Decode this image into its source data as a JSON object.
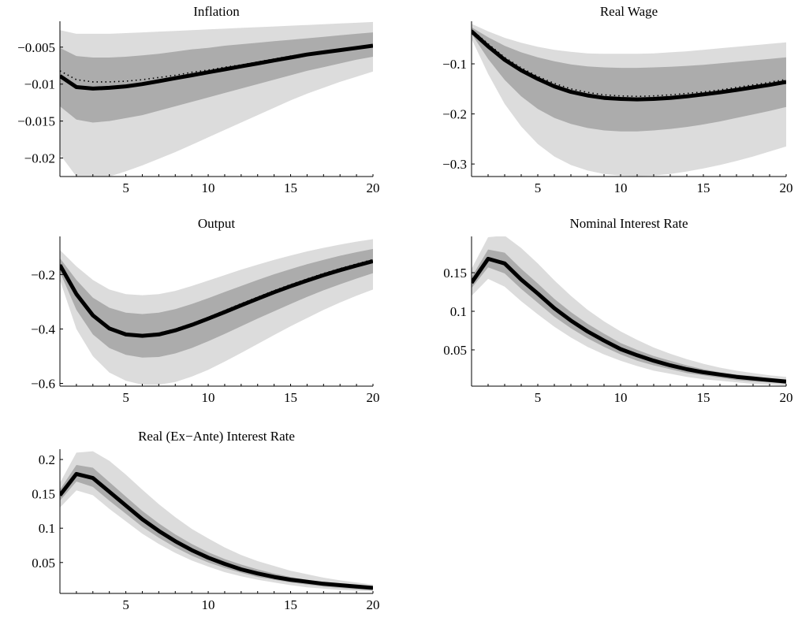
{
  "chart_data": [
    {
      "type": "line",
      "title": "Inflation",
      "xlabel": "",
      "ylabel": "",
      "xlim": [
        1,
        20
      ],
      "ylim": [
        -0.0225,
        -0.0015
      ],
      "xticks": [
        5,
        10,
        15,
        20
      ],
      "yticks": [
        -0.02,
        -0.015,
        -0.01,
        -0.005
      ],
      "ytick_labels": [
        "−0.02",
        "−0.015",
        "−0.01",
        "−0.005"
      ],
      "grid": false,
      "x": [
        1,
        2,
        3,
        4,
        5,
        6,
        7,
        8,
        9,
        10,
        11,
        12,
        13,
        14,
        15,
        16,
        17,
        18,
        19,
        20
      ],
      "series": [
        {
          "values": [
            -0.0089,
            -0.0104,
            -0.0106,
            -0.0105,
            -0.0103,
            -0.01,
            -0.0096,
            -0.0092,
            -0.0088,
            -0.0084,
            -0.008,
            -0.0076,
            -0.0072,
            -0.0068,
            -0.0064,
            -0.006,
            -0.0057,
            -0.0054,
            -0.0051,
            -0.0048
          ]
        },
        {
          "style": "dotted",
          "values": [
            -0.0082,
            -0.0094,
            -0.0097,
            -0.0097,
            -0.0096,
            -0.0094,
            -0.0091,
            -0.0088,
            -0.0084,
            -0.0081,
            -0.0077,
            -0.0074,
            -0.007,
            -0.0066,
            -0.0062,
            -0.0059,
            -0.0056,
            -0.0053,
            -0.005,
            -0.0047
          ]
        }
      ],
      "bands": [
        {
          "shade": "light",
          "lower": [
            -0.0195,
            -0.0225,
            -0.0228,
            -0.0225,
            -0.0218,
            -0.021,
            -0.0201,
            -0.0192,
            -0.0182,
            -0.0172,
            -0.0162,
            -0.0152,
            -0.0142,
            -0.0132,
            -0.0122,
            -0.0113,
            -0.0105,
            -0.0097,
            -0.009,
            -0.0083
          ],
          "upper": [
            -0.0027,
            -0.0032,
            -0.0032,
            -0.0032,
            -0.0031,
            -0.003,
            -0.0029,
            -0.0028,
            -0.0027,
            -0.0026,
            -0.0025,
            -0.0024,
            -0.0023,
            -0.0022,
            -0.0021,
            -0.002,
            -0.0019,
            -0.0018,
            -0.0017,
            -0.0016
          ]
        },
        {
          "shade": "dark",
          "lower": [
            -0.013,
            -0.0148,
            -0.0152,
            -0.015,
            -0.0146,
            -0.0142,
            -0.0136,
            -0.013,
            -0.0124,
            -0.0118,
            -0.0112,
            -0.0106,
            -0.01,
            -0.0094,
            -0.0088,
            -0.0082,
            -0.0077,
            -0.0072,
            -0.0067,
            -0.0063
          ],
          "upper": [
            -0.0051,
            -0.0062,
            -0.0064,
            -0.0064,
            -0.0063,
            -0.0061,
            -0.0059,
            -0.0056,
            -0.0053,
            -0.0051,
            -0.0048,
            -0.0046,
            -0.0044,
            -0.0042,
            -0.004,
            -0.0038,
            -0.0036,
            -0.0034,
            -0.0032,
            -0.003
          ]
        }
      ]
    },
    {
      "type": "line",
      "title": "Real Wage",
      "xlabel": "",
      "ylabel": "",
      "xlim": [
        1,
        20
      ],
      "ylim": [
        -0.325,
        -0.015
      ],
      "xticks": [
        5,
        10,
        15,
        20
      ],
      "yticks": [
        -0.3,
        -0.2,
        -0.1
      ],
      "ytick_labels": [
        "−0.3",
        "−0.2",
        "−0.1"
      ],
      "grid": false,
      "x": [
        1,
        2,
        3,
        4,
        5,
        6,
        7,
        8,
        9,
        10,
        11,
        12,
        13,
        14,
        15,
        16,
        17,
        18,
        19,
        20
      ],
      "series": [
        {
          "values": [
            -0.035,
            -0.065,
            -0.092,
            -0.113,
            -0.13,
            -0.145,
            -0.156,
            -0.163,
            -0.168,
            -0.17,
            -0.171,
            -0.17,
            -0.168,
            -0.165,
            -0.161,
            -0.157,
            -0.152,
            -0.147,
            -0.142,
            -0.136
          ]
        },
        {
          "style": "dotted",
          "values": [
            -0.032,
            -0.06,
            -0.087,
            -0.108,
            -0.125,
            -0.139,
            -0.15,
            -0.157,
            -0.162,
            -0.164,
            -0.165,
            -0.164,
            -0.162,
            -0.159,
            -0.156,
            -0.152,
            -0.147,
            -0.142,
            -0.137,
            -0.131
          ]
        }
      ],
      "bands": [
        {
          "shade": "light",
          "lower": [
            -0.05,
            -0.12,
            -0.18,
            -0.225,
            -0.26,
            -0.285,
            -0.302,
            -0.313,
            -0.32,
            -0.323,
            -0.324,
            -0.323,
            -0.32,
            -0.315,
            -0.309,
            -0.302,
            -0.294,
            -0.285,
            -0.275,
            -0.265
          ],
          "upper": [
            -0.02,
            -0.035,
            -0.048,
            -0.058,
            -0.066,
            -0.072,
            -0.076,
            -0.079,
            -0.08,
            -0.08,
            -0.08,
            -0.079,
            -0.077,
            -0.075,
            -0.072,
            -0.069,
            -0.066,
            -0.063,
            -0.06,
            -0.057
          ]
        },
        {
          "shade": "dark",
          "lower": [
            -0.04,
            -0.09,
            -0.132,
            -0.165,
            -0.19,
            -0.208,
            -0.22,
            -0.228,
            -0.233,
            -0.235,
            -0.235,
            -0.233,
            -0.23,
            -0.226,
            -0.221,
            -0.215,
            -0.208,
            -0.201,
            -0.194,
            -0.186
          ],
          "upper": [
            -0.027,
            -0.047,
            -0.064,
            -0.077,
            -0.087,
            -0.095,
            -0.101,
            -0.105,
            -0.107,
            -0.108,
            -0.108,
            -0.107,
            -0.106,
            -0.104,
            -0.102,
            -0.099,
            -0.096,
            -0.093,
            -0.09,
            -0.087
          ]
        }
      ]
    },
    {
      "type": "line",
      "title": "Output",
      "xlabel": "",
      "ylabel": "",
      "xlim": [
        1,
        20
      ],
      "ylim": [
        -0.61,
        -0.06
      ],
      "xticks": [
        5,
        10,
        15,
        20
      ],
      "yticks": [
        -0.6,
        -0.4,
        -0.2
      ],
      "ytick_labels": [
        "−0.6",
        "−0.4",
        "−0.2"
      ],
      "grid": false,
      "x": [
        1,
        2,
        3,
        4,
        5,
        6,
        7,
        8,
        9,
        10,
        11,
        12,
        13,
        14,
        15,
        16,
        17,
        18,
        19,
        20
      ],
      "series": [
        {
          "values": [
            -0.165,
            -0.272,
            -0.35,
            -0.398,
            -0.42,
            -0.425,
            -0.42,
            -0.405,
            -0.385,
            -0.362,
            -0.338,
            -0.313,
            -0.289,
            -0.265,
            -0.243,
            -0.222,
            -0.202,
            -0.184,
            -0.167,
            -0.151
          ]
        },
        {
          "style": "dotted",
          "values": [
            -0.163,
            -0.27,
            -0.347,
            -0.395,
            -0.416,
            -0.421,
            -0.415,
            -0.4,
            -0.38,
            -0.357,
            -0.332,
            -0.307,
            -0.283,
            -0.259,
            -0.237,
            -0.216,
            -0.196,
            -0.178,
            -0.161,
            -0.145
          ]
        }
      ],
      "bands": [
        {
          "shade": "light",
          "lower": [
            -0.22,
            -0.4,
            -0.5,
            -0.56,
            -0.59,
            -0.605,
            -0.605,
            -0.595,
            -0.575,
            -0.55,
            -0.52,
            -0.488,
            -0.455,
            -0.422,
            -0.39,
            -0.36,
            -0.33,
            -0.303,
            -0.278,
            -0.255
          ],
          "upper": [
            -0.11,
            -0.17,
            -0.22,
            -0.255,
            -0.272,
            -0.276,
            -0.272,
            -0.26,
            -0.242,
            -0.222,
            -0.202,
            -0.182,
            -0.164,
            -0.146,
            -0.13,
            -0.115,
            -0.102,
            -0.09,
            -0.079,
            -0.07
          ]
        },
        {
          "shade": "dark",
          "lower": [
            -0.19,
            -0.33,
            -0.42,
            -0.47,
            -0.495,
            -0.505,
            -0.503,
            -0.49,
            -0.47,
            -0.445,
            -0.418,
            -0.39,
            -0.362,
            -0.335,
            -0.308,
            -0.282,
            -0.258,
            -0.236,
            -0.215,
            -0.195
          ],
          "upper": [
            -0.14,
            -0.22,
            -0.285,
            -0.322,
            -0.34,
            -0.345,
            -0.34,
            -0.327,
            -0.308,
            -0.287,
            -0.264,
            -0.242,
            -0.22,
            -0.199,
            -0.18,
            -0.162,
            -0.146,
            -0.131,
            -0.118,
            -0.106
          ]
        }
      ]
    },
    {
      "type": "line",
      "title": "Nominal Interest Rate",
      "xlabel": "",
      "ylabel": "",
      "xlim": [
        1,
        20
      ],
      "ylim": [
        0.003,
        0.197
      ],
      "xticks": [
        5,
        10,
        15,
        20
      ],
      "yticks": [
        0.05,
        0.1,
        0.15
      ],
      "ytick_labels": [
        "0.05",
        "0.1",
        "0.15"
      ],
      "grid": false,
      "x": [
        1,
        2,
        3,
        4,
        5,
        6,
        7,
        8,
        9,
        10,
        11,
        12,
        13,
        14,
        15,
        16,
        17,
        18,
        19,
        20
      ],
      "series": [
        {
          "values": [
            0.137,
            0.168,
            0.162,
            0.141,
            0.123,
            0.104,
            0.088,
            0.074,
            0.062,
            0.051,
            0.043,
            0.036,
            0.03,
            0.025,
            0.021,
            0.018,
            0.015,
            0.013,
            0.011,
            0.009
          ]
        },
        {
          "style": "dotted",
          "values": [
            0.137,
            0.168,
            0.162,
            0.141,
            0.123,
            0.104,
            0.088,
            0.074,
            0.062,
            0.051,
            0.043,
            0.036,
            0.03,
            0.025,
            0.021,
            0.018,
            0.015,
            0.013,
            0.011,
            0.009
          ]
        }
      ],
      "bands": [
        {
          "shade": "light",
          "lower": [
            0.12,
            0.142,
            0.132,
            0.113,
            0.096,
            0.08,
            0.066,
            0.054,
            0.044,
            0.036,
            0.029,
            0.023,
            0.019,
            0.015,
            0.012,
            0.01,
            0.008,
            0.006,
            0.005,
            0.004
          ],
          "upper": [
            0.155,
            0.196,
            0.198,
            0.182,
            0.162,
            0.14,
            0.12,
            0.102,
            0.087,
            0.074,
            0.063,
            0.053,
            0.045,
            0.038,
            0.032,
            0.027,
            0.023,
            0.02,
            0.017,
            0.015
          ]
        },
        {
          "shade": "dark",
          "lower": [
            0.13,
            0.157,
            0.149,
            0.129,
            0.111,
            0.093,
            0.078,
            0.065,
            0.054,
            0.044,
            0.036,
            0.03,
            0.025,
            0.02,
            0.017,
            0.014,
            0.011,
            0.009,
            0.008,
            0.006
          ],
          "upper": [
            0.144,
            0.18,
            0.176,
            0.155,
            0.136,
            0.116,
            0.099,
            0.084,
            0.071,
            0.059,
            0.05,
            0.042,
            0.036,
            0.03,
            0.025,
            0.021,
            0.018,
            0.016,
            0.013,
            0.011
          ]
        }
      ]
    },
    {
      "type": "line",
      "title": "Real (Ex−Ante) Interest Rate",
      "xlabel": "",
      "ylabel": "",
      "xlim": [
        1,
        20
      ],
      "ylim": [
        0.005,
        0.215
      ],
      "xticks": [
        5,
        10,
        15,
        20
      ],
      "yticks": [
        0.05,
        0.1,
        0.15,
        0.2
      ],
      "ytick_labels": [
        "0.05",
        "0.1",
        "0.15",
        "0.2"
      ],
      "grid": false,
      "x": [
        1,
        2,
        3,
        4,
        5,
        6,
        7,
        8,
        9,
        10,
        11,
        12,
        13,
        14,
        15,
        16,
        17,
        18,
        19,
        20
      ],
      "series": [
        {
          "values": [
            0.148,
            0.179,
            0.173,
            0.153,
            0.133,
            0.113,
            0.096,
            0.081,
            0.068,
            0.057,
            0.048,
            0.04,
            0.034,
            0.029,
            0.025,
            0.022,
            0.019,
            0.017,
            0.015,
            0.013
          ]
        },
        {
          "style": "dotted",
          "values": [
            0.148,
            0.179,
            0.173,
            0.153,
            0.133,
            0.113,
            0.096,
            0.081,
            0.068,
            0.057,
            0.048,
            0.04,
            0.034,
            0.029,
            0.025,
            0.022,
            0.019,
            0.017,
            0.015,
            0.013
          ]
        }
      ],
      "bands": [
        {
          "shade": "light",
          "lower": [
            0.13,
            0.155,
            0.148,
            0.128,
            0.11,
            0.092,
            0.077,
            0.064,
            0.053,
            0.044,
            0.036,
            0.03,
            0.025,
            0.021,
            0.017,
            0.014,
            0.012,
            0.01,
            0.009,
            0.008
          ],
          "upper": [
            0.166,
            0.21,
            0.212,
            0.198,
            0.178,
            0.156,
            0.135,
            0.116,
            0.099,
            0.085,
            0.072,
            0.061,
            0.052,
            0.045,
            0.038,
            0.033,
            0.028,
            0.024,
            0.021,
            0.018
          ]
        },
        {
          "shade": "dark",
          "lower": [
            0.14,
            0.168,
            0.16,
            0.14,
            0.121,
            0.102,
            0.086,
            0.072,
            0.06,
            0.05,
            0.042,
            0.035,
            0.029,
            0.025,
            0.021,
            0.018,
            0.015,
            0.013,
            0.011,
            0.01
          ],
          "upper": [
            0.156,
            0.192,
            0.188,
            0.167,
            0.146,
            0.125,
            0.107,
            0.091,
            0.077,
            0.065,
            0.055,
            0.047,
            0.04,
            0.034,
            0.029,
            0.025,
            0.022,
            0.019,
            0.017,
            0.015
          ]
        }
      ]
    }
  ],
  "colors": {
    "light_band": "#dcdcdc",
    "dark_band": "#acacac",
    "line": "#000000"
  }
}
